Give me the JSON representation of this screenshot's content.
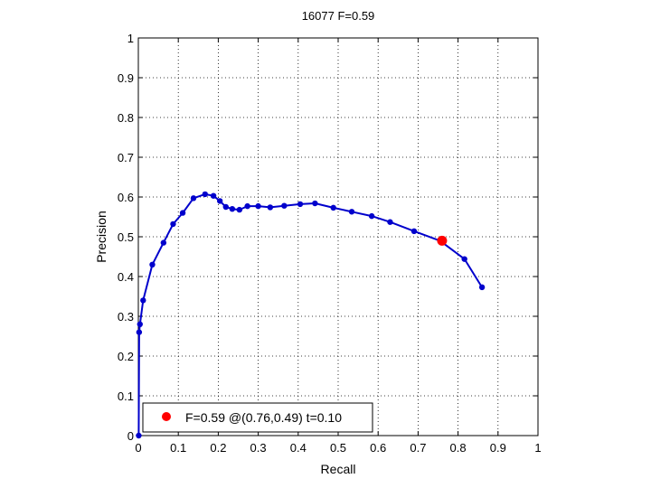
{
  "chart_data": {
    "type": "line",
    "title": "16077 F=0.59",
    "xlabel": "Recall",
    "ylabel": "Precision",
    "xlim": [
      0,
      1
    ],
    "ylim": [
      0,
      1
    ],
    "grid": true,
    "x_ticks": [
      "0",
      "0.1",
      "0.2",
      "0.3",
      "0.4",
      "0.5",
      "0.6",
      "0.7",
      "0.8",
      "0.9",
      "1"
    ],
    "y_ticks": [
      "0",
      "0.1",
      "0.2",
      "0.3",
      "0.4",
      "0.5",
      "0.6",
      "0.7",
      "0.8",
      "0.9",
      "1"
    ],
    "series": [
      {
        "color": "#0000cc",
        "x": [
          0.001,
          0.002,
          0.004,
          0.012,
          0.035,
          0.063,
          0.087,
          0.111,
          0.138,
          0.167,
          0.188,
          0.204,
          0.219,
          0.235,
          0.253,
          0.273,
          0.3,
          0.33,
          0.365,
          0.405,
          0.442,
          0.488,
          0.534,
          0.584,
          0.63,
          0.69,
          0.755,
          0.816,
          0.86
        ],
        "y": [
          0.0,
          0.26,
          0.28,
          0.34,
          0.43,
          0.485,
          0.532,
          0.56,
          0.597,
          0.607,
          0.603,
          0.59,
          0.575,
          0.57,
          0.568,
          0.577,
          0.577,
          0.574,
          0.578,
          0.582,
          0.584,
          0.573,
          0.563,
          0.552,
          0.537,
          0.514,
          0.49,
          0.444,
          0.373
        ]
      }
    ],
    "best_point": {
      "x": 0.76,
      "y": 0.49,
      "color": "#ff0000"
    },
    "legend": {
      "position": "bottom-left",
      "label": "F=0.59 @(0.76,0.49) t=0.10",
      "marker_color": "#ff0000"
    }
  }
}
